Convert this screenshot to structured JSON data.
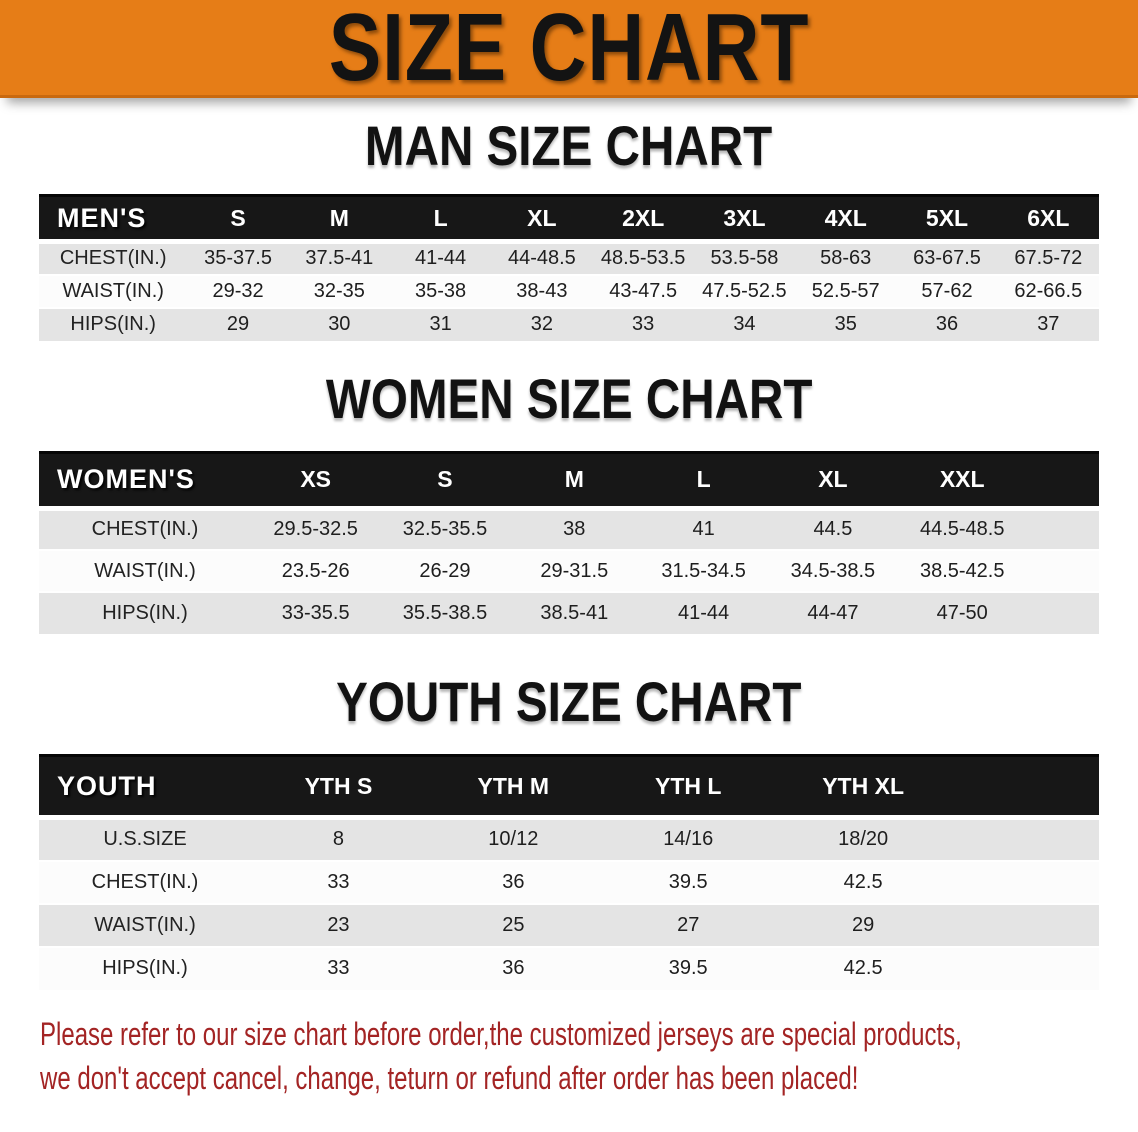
{
  "banner": {
    "title": "SIZE CHART",
    "bg_color": "#E67D17",
    "text_color": "#131313"
  },
  "charts": [
    {
      "id": "men",
      "title": "MAN SIZE CHART",
      "corner_label": "MEN'S",
      "columns": [
        "S",
        "M",
        "L",
        "XL",
        "2XL",
        "3XL",
        "4XL",
        "5XL",
        "6XL"
      ],
      "rows": [
        {
          "label": "CHEST(IN.)",
          "values": [
            "35-37.5",
            "37.5-41",
            "41-44",
            "44-48.5",
            "48.5-53.5",
            "53.5-58",
            "58-63",
            "63-67.5",
            "67.5-72"
          ]
        },
        {
          "label": "WAIST(IN.)",
          "values": [
            "29-32",
            "32-35",
            "35-38",
            "38-43",
            "43-47.5",
            "47.5-52.5",
            "52.5-57",
            "57-62",
            "62-66.5"
          ]
        },
        {
          "label": "HIPS(IN.)",
          "values": [
            "29",
            "30",
            "31",
            "32",
            "33",
            "34",
            "35",
            "36",
            "37"
          ]
        }
      ]
    },
    {
      "id": "women",
      "title": "WOMEN SIZE CHART",
      "corner_label": "WOMEN'S",
      "columns": [
        "XS",
        "S",
        "M",
        "L",
        "XL",
        "XXL"
      ],
      "rows": [
        {
          "label": "CHEST(IN.)",
          "values": [
            "29.5-32.5",
            "32.5-35.5",
            "38",
            "41",
            "44.5",
            "44.5-48.5"
          ]
        },
        {
          "label": "WAIST(IN.)",
          "values": [
            "23.5-26",
            "26-29",
            "29-31.5",
            "31.5-34.5",
            "34.5-38.5",
            "38.5-42.5"
          ]
        },
        {
          "label": "HIPS(IN.)",
          "values": [
            "33-35.5",
            "35.5-38.5",
            "38.5-41",
            "41-44",
            "44-47",
            "47-50"
          ]
        }
      ]
    },
    {
      "id": "youth",
      "title": "YOUTH SIZE CHART",
      "corner_label": "YOUTH",
      "columns": [
        "YTH S",
        "YTH M",
        "YTH L",
        "YTH XL"
      ],
      "rows": [
        {
          "label": "U.S.SIZE",
          "values": [
            "8",
            "10/12",
            "14/16",
            "18/20"
          ]
        },
        {
          "label": "CHEST(IN.)",
          "values": [
            "33",
            "36",
            "39.5",
            "42.5"
          ]
        },
        {
          "label": "WAIST(IN.)",
          "values": [
            "23",
            "25",
            "27",
            "29"
          ]
        },
        {
          "label": "HIPS(IN.)",
          "values": [
            "33",
            "36",
            "39.5",
            "42.5"
          ]
        }
      ]
    }
  ],
  "footer": {
    "line1": "Please refer to our size chart before order,the customized jerseys are special products,",
    "line2": "we don't accept cancel, change, teturn or refund after order has been placed!",
    "color": "#A32424"
  },
  "row_colors": {
    "odd": "#E4E4E4",
    "even": "#FCFCFC",
    "header_bg": "#171717",
    "header_text": "#FFFFFF"
  }
}
